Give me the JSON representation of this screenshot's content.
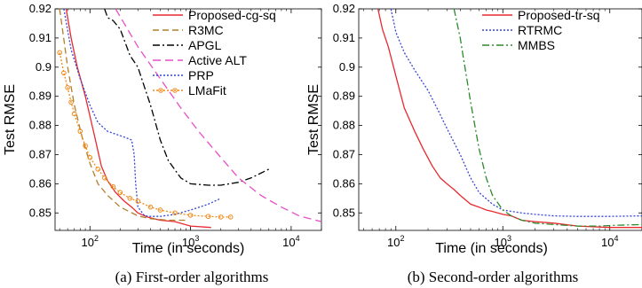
{
  "chart_data": [
    {
      "type": "line",
      "caption": "(a) First-order algorithms",
      "xlabel": "Time (in seconds)",
      "ylabel": "Test RMSE",
      "xscale": "log",
      "xlim": [
        45,
        20000
      ],
      "ylim": [
        0.844,
        0.92
      ],
      "yticks": [
        0.85,
        0.86,
        0.87,
        0.88,
        0.89,
        0.9,
        0.91,
        0.92
      ],
      "xtick_labels": [
        {
          "value": 100,
          "label": "10",
          "exp": "2"
        },
        {
          "value": 1000,
          "label": "10",
          "exp": "3"
        },
        {
          "value": 10000,
          "label": "10",
          "exp": "4"
        }
      ],
      "legend_position": "top-right",
      "series": [
        {
          "name": "Proposed-cg-sq",
          "color": "#e8292f",
          "dash": "",
          "x": [
            58,
            65,
            75,
            90,
            110,
            130,
            150,
            180,
            220,
            260,
            300,
            380,
            500,
            700,
            1000,
            1600
          ],
          "y": [
            0.92,
            0.91,
            0.9,
            0.89,
            0.877,
            0.866,
            0.861,
            0.857,
            0.854,
            0.852,
            0.85,
            0.8485,
            0.8475,
            0.847,
            0.8455,
            0.845
          ]
        },
        {
          "name": "R3MC",
          "color": "#b07f2a",
          "dash": "7,4",
          "x": [
            50,
            60,
            70,
            85,
            100,
            120,
            150,
            200,
            300,
            400,
            600,
            900
          ],
          "y": [
            0.92,
            0.9,
            0.887,
            0.875,
            0.867,
            0.86,
            0.856,
            0.852,
            0.849,
            0.848,
            0.8475,
            0.8475
          ]
        },
        {
          "name": "APGL",
          "color": "#000000",
          "dash": "8,3,2,3",
          "x": [
            140,
            150,
            170,
            200,
            250,
            300,
            350,
            400,
            500,
            600,
            800,
            1000,
            1500,
            2000,
            3000,
            4000,
            6000
          ],
          "y": [
            0.92,
            0.917,
            0.916,
            0.913,
            0.904,
            0.9,
            0.893,
            0.887,
            0.875,
            0.868,
            0.862,
            0.86,
            0.8595,
            0.8595,
            0.8605,
            0.862,
            0.865
          ]
        },
        {
          "name": "Active ALT",
          "color": "#e64fc8",
          "dash": "9,5",
          "x": [
            180,
            300,
            500,
            800,
            1200,
            2000,
            3000,
            5000,
            8000,
            12000,
            20000
          ],
          "y": [
            0.92,
            0.907,
            0.896,
            0.886,
            0.878,
            0.869,
            0.862,
            0.856,
            0.852,
            0.849,
            0.847
          ]
        },
        {
          "name": "PRP",
          "color": "#3444d6",
          "dash": "2,2",
          "x": [
            55,
            65,
            80,
            100,
            120,
            150,
            180,
            220,
            260,
            275,
            285,
            300,
            350,
            400,
            500,
            700,
            1000,
            1500,
            2000
          ],
          "y": [
            0.92,
            0.906,
            0.896,
            0.887,
            0.881,
            0.878,
            0.877,
            0.876,
            0.875,
            0.87,
            0.86,
            0.852,
            0.849,
            0.8488,
            0.8488,
            0.8495,
            0.851,
            0.853,
            0.855
          ]
        },
        {
          "name": "LMaFit",
          "color": "#f08a18",
          "dash": "2,2",
          "x": [
            50,
            55,
            60,
            65,
            70,
            80,
            90,
            100,
            120,
            140,
            170,
            200,
            250,
            300,
            400,
            500,
            700,
            1000,
            1500,
            2000,
            2500
          ],
          "y": [
            0.905,
            0.898,
            0.893,
            0.888,
            0.884,
            0.878,
            0.873,
            0.869,
            0.865,
            0.862,
            0.859,
            0.857,
            0.855,
            0.854,
            0.852,
            0.851,
            0.85,
            0.8492,
            0.8488,
            0.8486,
            0.8486
          ]
        }
      ]
    },
    {
      "type": "line",
      "caption": "(b) Second-order algorithms",
      "xlabel": "Time (in seconds)",
      "ylabel": "Test RMSE",
      "xscale": "log",
      "xlim": [
        45,
        20000
      ],
      "ylim": [
        0.844,
        0.92
      ],
      "yticks": [
        0.85,
        0.86,
        0.87,
        0.88,
        0.89,
        0.9,
        0.91,
        0.92
      ],
      "xtick_labels": [
        {
          "value": 100,
          "label": "10",
          "exp": "2"
        },
        {
          "value": 1000,
          "label": "10",
          "exp": "3"
        },
        {
          "value": 10000,
          "label": "10",
          "exp": "4"
        }
      ],
      "legend_position": "top-right",
      "series": [
        {
          "name": "Proposed-tr-sq",
          "color": "#e8292f",
          "dash": "",
          "x": [
            68,
            75,
            85,
            100,
            120,
            150,
            180,
            220,
            260,
            300,
            350,
            400,
            500,
            600,
            700,
            800,
            1000,
            1200,
            1500,
            2000,
            3000,
            5000,
            10000,
            20000
          ],
          "y": [
            0.92,
            0.913,
            0.907,
            0.897,
            0.886,
            0.878,
            0.872,
            0.866,
            0.862,
            0.86,
            0.858,
            0.856,
            0.853,
            0.852,
            0.851,
            0.8505,
            0.8495,
            0.849,
            0.8475,
            0.847,
            0.8465,
            0.8455,
            0.845,
            0.845
          ]
        },
        {
          "name": "RTRMC",
          "color": "#3444d6",
          "dash": "2,2",
          "x": [
            90,
            100,
            120,
            150,
            200,
            250,
            300,
            400,
            500,
            600,
            800,
            1000,
            1500,
            2000,
            3000,
            5000,
            10000,
            20000
          ],
          "y": [
            0.92,
            0.912,
            0.905,
            0.899,
            0.892,
            0.885,
            0.879,
            0.87,
            0.862,
            0.857,
            0.853,
            0.851,
            0.85,
            0.8495,
            0.849,
            0.8488,
            0.8488,
            0.849
          ]
        },
        {
          "name": "MMBS",
          "color": "#2a8a2a",
          "dash": "8,3,2,3",
          "x": [
            350,
            400,
            420,
            500,
            600,
            700,
            800,
            1000,
            1200,
            1500,
            2000,
            3000,
            5000,
            8000,
            12000,
            20000
          ],
          "y": [
            0.92,
            0.91,
            0.905,
            0.888,
            0.872,
            0.862,
            0.856,
            0.851,
            0.849,
            0.8475,
            0.8465,
            0.846,
            0.8455,
            0.8455,
            0.8458,
            0.846
          ]
        }
      ]
    }
  ]
}
